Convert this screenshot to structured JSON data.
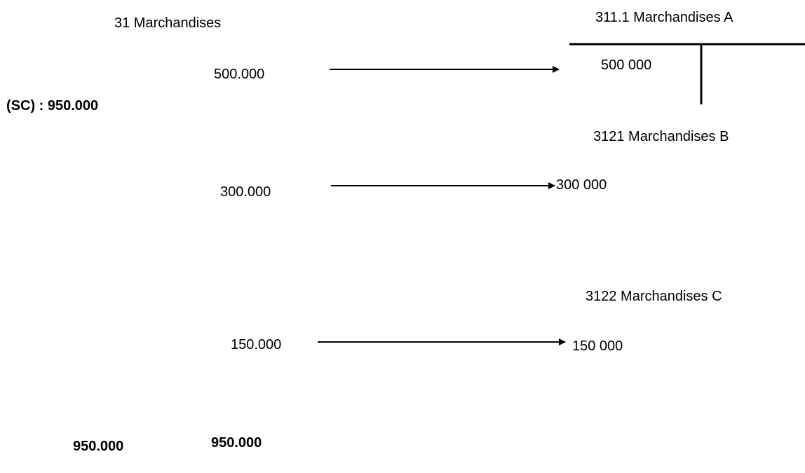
{
  "main_account": {
    "title": "31 Marchandises",
    "opening_balance": "(SC) : 950.000",
    "entries": [
      "500.000",
      "300.000",
      "150.000"
    ],
    "total_debit": "950.000",
    "total_credit": "950.000"
  },
  "sub_accounts": [
    {
      "title": "311.1 Marchandises A",
      "amount": "500 000"
    },
    {
      "title": "3121 Marchandises B",
      "amount": "300 000"
    },
    {
      "title": "3122 Marchandises C",
      "amount": "150 000"
    }
  ],
  "colors": {
    "ink": "#000000",
    "background": "#ffffff"
  }
}
